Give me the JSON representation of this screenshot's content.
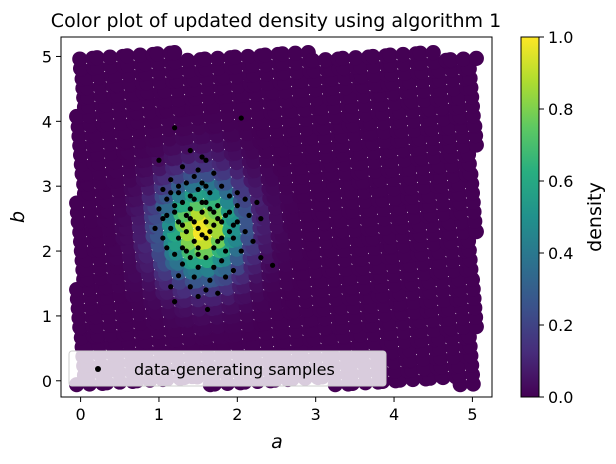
{
  "chart_data": {
    "type": "scatter",
    "title": "Color plot of updated density using algorithm 1",
    "xlabel": "a",
    "ylabel": "b",
    "xlim": [
      -0.25,
      5.25
    ],
    "ylim": [
      -0.25,
      5.3
    ],
    "x_ticks": [
      "0",
      "1",
      "2",
      "3",
      "4",
      "5"
    ],
    "y_ticks": [
      "0",
      "1",
      "2",
      "3",
      "4",
      "5"
    ],
    "colorbar": {
      "label": "density",
      "range": [
        0,
        1
      ],
      "ticks": [
        "0.0",
        "0.2",
        "0.4",
        "0.6",
        "0.8",
        "1.0"
      ],
      "colormap": "viridis"
    },
    "density_field": {
      "domain_a": [
        0,
        5
      ],
      "domain_b": [
        0,
        5
      ],
      "peak_center": [
        1.55,
        2.35
      ],
      "spread": [
        0.35,
        0.5
      ]
    },
    "series": [
      {
        "name": "data-generating samples",
        "color": "#000000",
        "points": [
          [
            1.2,
            3.9
          ],
          [
            2.05,
            4.05
          ],
          [
            1.4,
            3.55
          ],
          [
            1.55,
            3.45
          ],
          [
            1.6,
            3.4
          ],
          [
            1.0,
            3.4
          ],
          [
            1.3,
            3.3
          ],
          [
            1.5,
            3.25
          ],
          [
            1.45,
            3.15
          ],
          [
            1.7,
            3.2
          ],
          [
            1.15,
            3.1
          ],
          [
            1.35,
            3.05
          ],
          [
            1.55,
            3.05
          ],
          [
            1.8,
            3.0
          ],
          [
            1.05,
            2.95
          ],
          [
            1.25,
            2.9
          ],
          [
            1.5,
            2.95
          ],
          [
            1.65,
            2.9
          ],
          [
            1.9,
            2.85
          ],
          [
            2.1,
            2.8
          ],
          [
            1.1,
            2.8
          ],
          [
            1.3,
            2.75
          ],
          [
            1.45,
            2.8
          ],
          [
            1.6,
            2.75
          ],
          [
            1.75,
            2.7
          ],
          [
            2.0,
            2.7
          ],
          [
            2.25,
            2.75
          ],
          [
            1.0,
            2.65
          ],
          [
            1.2,
            2.6
          ],
          [
            1.4,
            2.65
          ],
          [
            1.55,
            2.6
          ],
          [
            1.7,
            2.6
          ],
          [
            1.85,
            2.55
          ],
          [
            2.15,
            2.55
          ],
          [
            1.05,
            2.5
          ],
          [
            1.25,
            2.45
          ],
          [
            1.4,
            2.5
          ],
          [
            1.6,
            2.45
          ],
          [
            1.8,
            2.45
          ],
          [
            2.0,
            2.45
          ],
          [
            2.3,
            2.5
          ],
          [
            0.95,
            2.35
          ],
          [
            1.15,
            2.35
          ],
          [
            1.35,
            2.3
          ],
          [
            1.5,
            2.35
          ],
          [
            1.65,
            2.3
          ],
          [
            1.9,
            2.3
          ],
          [
            2.1,
            2.3
          ],
          [
            1.05,
            2.2
          ],
          [
            1.25,
            2.2
          ],
          [
            1.45,
            2.15
          ],
          [
            1.6,
            2.2
          ],
          [
            1.75,
            2.15
          ],
          [
            1.95,
            2.2
          ],
          [
            2.2,
            2.15
          ],
          [
            1.1,
            2.05
          ],
          [
            1.3,
            2.05
          ],
          [
            1.5,
            2.05
          ],
          [
            1.7,
            2.05
          ],
          [
            1.85,
            2.0
          ],
          [
            2.05,
            2.0
          ],
          [
            1.2,
            1.95
          ],
          [
            1.4,
            1.9
          ],
          [
            1.6,
            1.9
          ],
          [
            1.8,
            1.85
          ],
          [
            2.3,
            1.9
          ],
          [
            1.3,
            1.8
          ],
          [
            1.5,
            1.75
          ],
          [
            1.7,
            1.75
          ],
          [
            1.95,
            1.7
          ],
          [
            2.45,
            1.78
          ],
          [
            1.25,
            1.62
          ],
          [
            1.45,
            1.6
          ],
          [
            1.65,
            1.55
          ],
          [
            1.85,
            1.6
          ],
          [
            1.15,
            1.45
          ],
          [
            1.4,
            1.45
          ],
          [
            1.6,
            1.4
          ],
          [
            1.5,
            1.3
          ],
          [
            1.75,
            1.35
          ],
          [
            1.2,
            1.22
          ],
          [
            1.62,
            1.1
          ],
          [
            1.35,
            2.55
          ],
          [
            1.55,
            2.75
          ],
          [
            1.7,
            2.4
          ],
          [
            1.2,
            2.7
          ],
          [
            1.45,
            2.45
          ],
          [
            1.65,
            2.65
          ],
          [
            1.8,
            2.2
          ],
          [
            1.35,
            2.0
          ],
          [
            1.55,
            2.25
          ],
          [
            1.4,
            2.85
          ],
          [
            1.6,
            3.0
          ],
          [
            1.25,
            3.0
          ],
          [
            1.9,
            2.6
          ],
          [
            2.0,
            2.9
          ],
          [
            1.1,
            2.55
          ],
          [
            1.5,
            1.95
          ],
          [
            1.75,
            2.5
          ],
          [
            1.3,
            2.4
          ],
          [
            1.95,
            2.4
          ],
          [
            1.15,
            2.9
          ]
        ]
      }
    ],
    "legend": {
      "position": "lower-left",
      "entries": [
        "data-generating samples"
      ]
    }
  }
}
